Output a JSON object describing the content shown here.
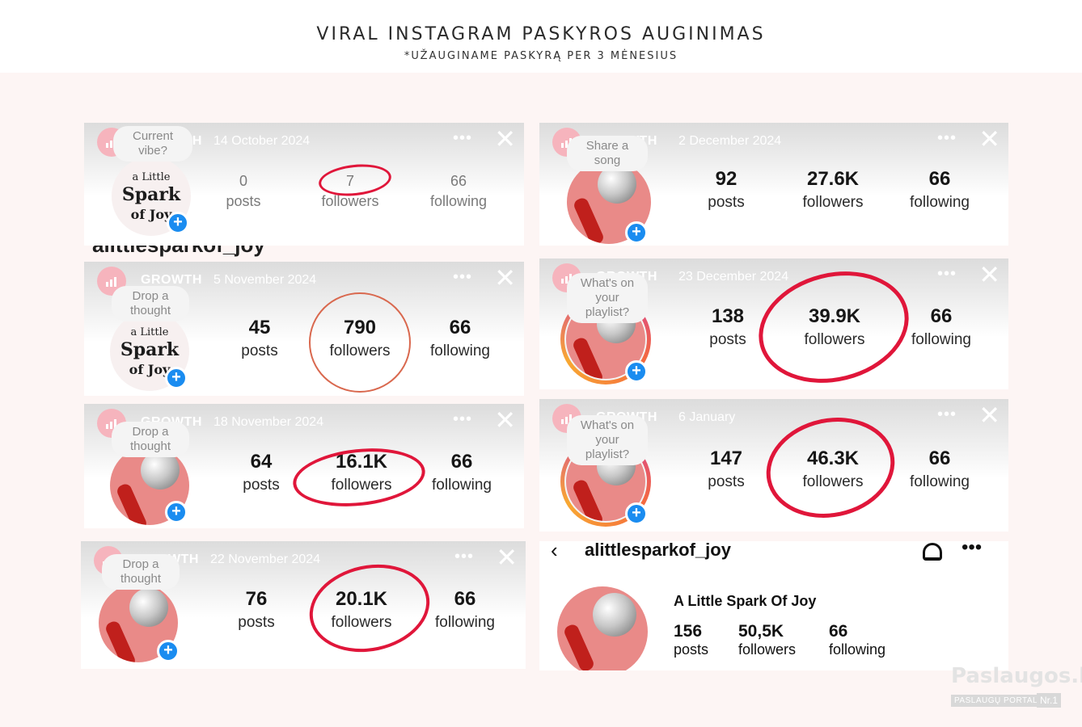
{
  "header": {
    "title": "VIRAL INSTAGRAM PASKYROS AUGINIMAS",
    "subtitle": "*UŽAUGINAME PASKYRĄ PER 3 MĖNESIUS"
  },
  "cards": [
    {
      "growth": "GROWTH",
      "date": "14 October 2024",
      "bubble": "Current vibe?",
      "posts": "0",
      "followers": "7",
      "following": "66"
    },
    {
      "growth": "GROWTH",
      "date": "5 November 2024",
      "bubble": "Drop a thought",
      "posts": "45",
      "followers": "790",
      "following": "66"
    },
    {
      "growth": "GROWTH",
      "date": "18 November 2024",
      "bubble": "Drop a thought",
      "posts": "64",
      "followers": "16.1K",
      "following": "66"
    },
    {
      "growth": "GROWTH",
      "date": "22 November 2024",
      "bubble": "Drop a thought",
      "posts": "76",
      "followers": "20.1K",
      "following": "66"
    },
    {
      "growth": "GROWTH",
      "date": "2 December 2024",
      "bubble": "Share a song",
      "posts": "92",
      "followers": "27.6K",
      "following": "66"
    },
    {
      "growth": "GROWTH",
      "date": "23 December 2024",
      "bubble": "What's on your playlist?",
      "posts": "138",
      "followers": "39.9K",
      "following": "66"
    },
    {
      "growth": "GROWTH",
      "date": "6 January",
      "bubble": "What's on your playlist?",
      "posts": "147",
      "followers": "46.3K",
      "following": "66"
    }
  ],
  "labels": {
    "posts": "posts",
    "followers": "followers",
    "following": "following"
  },
  "strip_text": "alittlesparkof_joy",
  "logo": {
    "line1": "a Little",
    "line2": "Spark",
    "line3": "of Joy"
  },
  "profile": {
    "username": "alittlesparkof_joy",
    "display_name": "A Little Spark Of Joy",
    "posts": "156",
    "followers": "50,5K",
    "following": "66"
  },
  "watermark": {
    "name": "Paslaugos.lt",
    "sub": "PASLAUGŲ PORTALAS",
    "nr": "Nr.1"
  },
  "icons": {
    "growth": "bar-chart-icon",
    "more": "more-dots-icon",
    "close": "close-icon",
    "add": "plus-icon",
    "back": "back-arrow-icon",
    "bell": "bell-icon"
  },
  "colors": {
    "highlight_red": "#e0163a",
    "highlight_orange": "#d9684e",
    "plus_blue": "#1a8cf0",
    "growth_pink": "#f6b4bd"
  }
}
